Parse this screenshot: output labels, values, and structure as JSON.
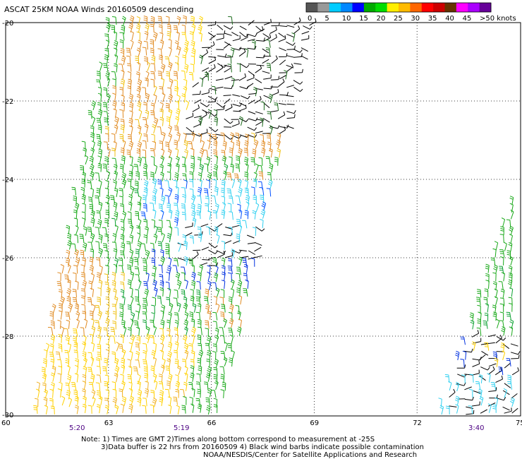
{
  "title": "ASCAT 25KM NOAA Winds 20160509 descending",
  "legend": {
    "colors": [
      "#555555",
      "#999999",
      "#00ccff",
      "#0088ff",
      "#0000ff",
      "#00aa00",
      "#00dd00",
      "#ffee00",
      "#ffbb00",
      "#ff6600",
      "#ff0000",
      "#cc0000",
      "#663300",
      "#ff00ff",
      "#aa00ff",
      "#660099"
    ],
    "labels": [
      "0",
      "5",
      "10",
      "15",
      "20",
      "25",
      "30",
      "35",
      "40",
      "45",
      ">50 knots"
    ]
  },
  "lat_labels": [
    "-20",
    "-22",
    "-24",
    "-26",
    "-28",
    "-30"
  ],
  "lon_labels": [
    "60",
    "63",
    "66",
    "69",
    "72",
    "75"
  ],
  "time_labels": [
    "5:20",
    "5:19",
    "3:40"
  ],
  "notes": [
    "Note: 1) Times are GMT 2)Times along bottom correspond to measurement at -25S",
    "3)Data buffer is 22 hrs from 20160509 4) Black wind barbs indicate possible contamination",
    "NOAA/NESDIS/Center for Satellite Applications and Research"
  ],
  "swaths": [
    {
      "name": "west-swath",
      "corners": [
        [
          63.0,
          -20.0
        ],
        [
          68.9,
          -20.0
        ],
        [
          66.3,
          -30.0
        ],
        [
          60.8,
          -30.0
        ]
      ],
      "speed_zones": [
        {
          "desc": "orange/yellow west band",
          "color": "#e07a10"
        },
        {
          "desc": "green central band",
          "color": "#18a818"
        },
        {
          "desc": "cyan/blue mid band",
          "color": "#20c0e0"
        },
        {
          "desc": "black contaminated NE",
          "color": "#000000"
        },
        {
          "desc": "yellow south",
          "color": "#f0c010"
        }
      ]
    },
    {
      "name": "east-swath",
      "corners": [
        [
          75.2,
          -23.4
        ],
        [
          75.2,
          -30.0
        ],
        [
          72.6,
          -30.0
        ]
      ],
      "speed_zones": [
        {
          "desc": "green band",
          "color": "#18a818"
        },
        {
          "desc": "black/blue/yellow south",
          "color": "#000000"
        }
      ]
    }
  ]
}
